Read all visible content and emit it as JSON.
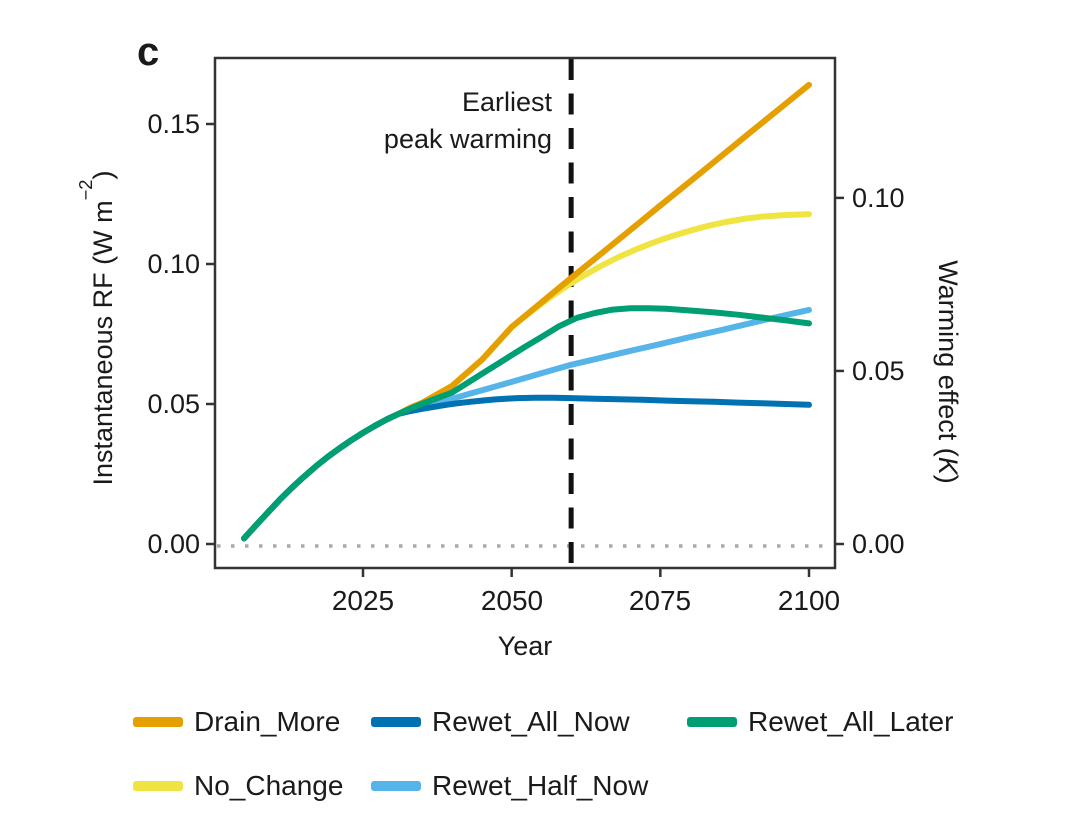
{
  "panel_label": "c",
  "annotation": {
    "line1": "Earliest",
    "line2": "peak warming"
  },
  "axes": {
    "x": {
      "title": "Year",
      "tick_labels": [
        "2025",
        "2050",
        "2075",
        "2100"
      ],
      "tick_values": [
        2025,
        2050,
        2075,
        2100
      ]
    },
    "y_left": {
      "title_pre": "Instantaneous RF (W m",
      "title_sup": "−2",
      "title_post": ")",
      "tick_labels": [
        "0.00",
        "0.05",
        "0.10",
        "0.15"
      ],
      "tick_values": [
        0,
        0.05,
        0.1,
        0.15
      ]
    },
    "y_right": {
      "title_pre": "Warming effect (",
      "title_italic": "K",
      "title_post": ")",
      "tick_labels": [
        "0.00",
        "0.05",
        "0.10"
      ],
      "tick_values_K": [
        0,
        0.05,
        0.1
      ]
    }
  },
  "colors": {
    "drain_more": "#E69F00",
    "no_change": "#F0E442",
    "rewet_all_now": "#0072B2",
    "rewet_half_now": "#56B4E9",
    "rewet_all_later": "#009E73",
    "zero_line": "#A9A9A9",
    "dashed_line": "#111111",
    "frame": "#333333",
    "text": "#1a1a1a"
  },
  "legend": {
    "items": [
      {
        "key": "drain_more",
        "label": "Drain_More"
      },
      {
        "key": "rewet_all_now",
        "label": "Rewet_All_Now"
      },
      {
        "key": "rewet_all_later",
        "label": "Rewet_All_Later"
      },
      {
        "key": "no_change",
        "label": "No_Change"
      },
      {
        "key": "rewet_half_now",
        "label": "Rewet_Half_Now"
      }
    ]
  },
  "chart_data": {
    "type": "line",
    "title": "",
    "xlabel": "Year",
    "ylabel_left": "Instantaneous RF (W m−2)",
    "ylabel_right": "Warming effect (K)",
    "x_ticks": [
      2025,
      2050,
      2075,
      2100
    ],
    "x_range_displayed": [
      2000,
      2104
    ],
    "ylim_left_RF": [
      -0.009,
      0.174
    ],
    "y_left_ticks_RF": [
      0,
      0.05,
      0.1,
      0.15
    ],
    "y_right_ticks_K": [
      0,
      0.05,
      0.1
    ],
    "K_per_Wm2": 0.809,
    "grid": false,
    "legend_position": "bottom",
    "reference_lines": [
      {
        "kind": "vertical-dashed",
        "x_year": 2060,
        "label": "Earliest peak warming"
      },
      {
        "kind": "horizontal-dotted",
        "y_RF": 0.0,
        "label": ""
      }
    ],
    "series": [
      {
        "name": "No_Change",
        "color_key": "no_change",
        "points": [
          [
            2005,
            0.002
          ],
          [
            2007,
            0.0067
          ],
          [
            2009,
            0.0113
          ],
          [
            2011,
            0.0158
          ],
          [
            2013,
            0.02
          ],
          [
            2015,
            0.0239
          ],
          [
            2017,
            0.0276
          ],
          [
            2019,
            0.031
          ],
          [
            2021,
            0.0341
          ],
          [
            2023,
            0.037
          ],
          [
            2025,
            0.0397
          ],
          [
            2027,
            0.0422
          ],
          [
            2029,
            0.0445
          ],
          [
            2031,
            0.0465
          ],
          [
            2033,
            0.0487
          ],
          [
            2035,
            0.0505
          ],
          [
            2040,
            0.0565
          ],
          [
            2045,
            0.0658
          ],
          [
            2050,
            0.0775
          ],
          [
            2053,
            0.0826
          ],
          [
            2056,
            0.0874
          ],
          [
            2059,
            0.0918
          ],
          [
            2062,
            0.0957
          ],
          [
            2065,
            0.0993
          ],
          [
            2068,
            0.1025
          ],
          [
            2071,
            0.1053
          ],
          [
            2074,
            0.1078
          ],
          [
            2077,
            0.11
          ],
          [
            2080,
            0.1119
          ],
          [
            2083,
            0.1136
          ],
          [
            2086,
            0.115
          ],
          [
            2089,
            0.1161
          ],
          [
            2092,
            0.1169
          ],
          [
            2096,
            0.1175
          ],
          [
            2100,
            0.1178
          ]
        ]
      },
      {
        "name": "Drain_More",
        "color_key": "drain_more",
        "points": [
          [
            2005,
            0.002
          ],
          [
            2007,
            0.0067
          ],
          [
            2009,
            0.0113
          ],
          [
            2011,
            0.0158
          ],
          [
            2013,
            0.02
          ],
          [
            2015,
            0.0239
          ],
          [
            2017,
            0.0276
          ],
          [
            2019,
            0.031
          ],
          [
            2021,
            0.0341
          ],
          [
            2023,
            0.037
          ],
          [
            2025,
            0.0397
          ],
          [
            2027,
            0.0422
          ],
          [
            2029,
            0.0445
          ],
          [
            2031,
            0.0465
          ],
          [
            2033,
            0.0487
          ],
          [
            2035,
            0.0505
          ],
          [
            2040,
            0.0565
          ],
          [
            2045,
            0.0658
          ],
          [
            2050,
            0.0775
          ],
          [
            2055,
            0.0863
          ],
          [
            2060,
            0.095
          ],
          [
            2065,
            0.1036
          ],
          [
            2070,
            0.1122
          ],
          [
            2075,
            0.1209
          ],
          [
            2080,
            0.1295
          ],
          [
            2085,
            0.1381
          ],
          [
            2090,
            0.1468
          ],
          [
            2095,
            0.1554
          ],
          [
            2100,
            0.164
          ]
        ]
      },
      {
        "name": "Rewet_Half_Now",
        "color_key": "rewet_half_now",
        "points": [
          [
            2005,
            0.002
          ],
          [
            2007,
            0.0067
          ],
          [
            2009,
            0.0113
          ],
          [
            2011,
            0.0158
          ],
          [
            2013,
            0.02
          ],
          [
            2015,
            0.0239
          ],
          [
            2017,
            0.0276
          ],
          [
            2019,
            0.031
          ],
          [
            2021,
            0.0341
          ],
          [
            2023,
            0.037
          ],
          [
            2025,
            0.0397
          ],
          [
            2027,
            0.0422
          ],
          [
            2029,
            0.0445
          ],
          [
            2031,
            0.0465
          ],
          [
            2033,
            0.0481
          ],
          [
            2035,
            0.0494
          ],
          [
            2037,
            0.0505
          ],
          [
            2040,
            0.0519
          ],
          [
            2043,
            0.0537
          ],
          [
            2046,
            0.0555
          ],
          [
            2050,
            0.0579
          ],
          [
            2055,
            0.061
          ],
          [
            2060,
            0.064
          ],
          [
            2065,
            0.0665
          ],
          [
            2070,
            0.069
          ],
          [
            2075,
            0.0714
          ],
          [
            2080,
            0.0739
          ],
          [
            2085,
            0.0763
          ],
          [
            2090,
            0.0788
          ],
          [
            2095,
            0.0812
          ],
          [
            2100,
            0.0836
          ]
        ]
      },
      {
        "name": "Rewet_All_Now",
        "color_key": "rewet_all_now",
        "points": [
          [
            2005,
            0.002
          ],
          [
            2007,
            0.0067
          ],
          [
            2009,
            0.0113
          ],
          [
            2011,
            0.0158
          ],
          [
            2013,
            0.02
          ],
          [
            2015,
            0.0239
          ],
          [
            2017,
            0.0276
          ],
          [
            2019,
            0.031
          ],
          [
            2021,
            0.0341
          ],
          [
            2023,
            0.037
          ],
          [
            2025,
            0.0397
          ],
          [
            2027,
            0.0422
          ],
          [
            2029,
            0.0445
          ],
          [
            2031,
            0.0465
          ],
          [
            2033,
            0.0475
          ],
          [
            2035,
            0.0483
          ],
          [
            2037,
            0.049
          ],
          [
            2039,
            0.0497
          ],
          [
            2041,
            0.0503
          ],
          [
            2043,
            0.0508
          ],
          [
            2045,
            0.0512
          ],
          [
            2047,
            0.0516
          ],
          [
            2049,
            0.0519
          ],
          [
            2051,
            0.0521
          ],
          [
            2054,
            0.0522
          ],
          [
            2057,
            0.0522
          ],
          [
            2060,
            0.0521
          ],
          [
            2064,
            0.0519
          ],
          [
            2068,
            0.0517
          ],
          [
            2072,
            0.0515
          ],
          [
            2076,
            0.0512
          ],
          [
            2080,
            0.051
          ],
          [
            2084,
            0.0508
          ],
          [
            2088,
            0.0505
          ],
          [
            2092,
            0.0503
          ],
          [
            2096,
            0.05
          ],
          [
            2100,
            0.0497
          ]
        ]
      },
      {
        "name": "Rewet_All_Later",
        "color_key": "rewet_all_later",
        "points": [
          [
            2005,
            0.002
          ],
          [
            2007,
            0.0067
          ],
          [
            2009,
            0.0113
          ],
          [
            2011,
            0.0158
          ],
          [
            2013,
            0.02
          ],
          [
            2015,
            0.0239
          ],
          [
            2017,
            0.0276
          ],
          [
            2019,
            0.031
          ],
          [
            2021,
            0.0341
          ],
          [
            2023,
            0.037
          ],
          [
            2025,
            0.0397
          ],
          [
            2027,
            0.0422
          ],
          [
            2029,
            0.0445
          ],
          [
            2031,
            0.0465
          ],
          [
            2033,
            0.0484
          ],
          [
            2035,
            0.0501
          ],
          [
            2037,
            0.0517
          ],
          [
            2040,
            0.0541
          ],
          [
            2043,
            0.0581
          ],
          [
            2046,
            0.0621
          ],
          [
            2049,
            0.0661
          ],
          [
            2052,
            0.0701
          ],
          [
            2055,
            0.0739
          ],
          [
            2058,
            0.0778
          ],
          [
            2061,
            0.0808
          ],
          [
            2064,
            0.0825
          ],
          [
            2067,
            0.0837
          ],
          [
            2070,
            0.0842
          ],
          [
            2073,
            0.0842
          ],
          [
            2076,
            0.084
          ],
          [
            2080,
            0.0834
          ],
          [
            2084,
            0.0827
          ],
          [
            2088,
            0.0819
          ],
          [
            2092,
            0.0809
          ],
          [
            2096,
            0.0799
          ],
          [
            2100,
            0.0788
          ]
        ]
      }
    ]
  }
}
